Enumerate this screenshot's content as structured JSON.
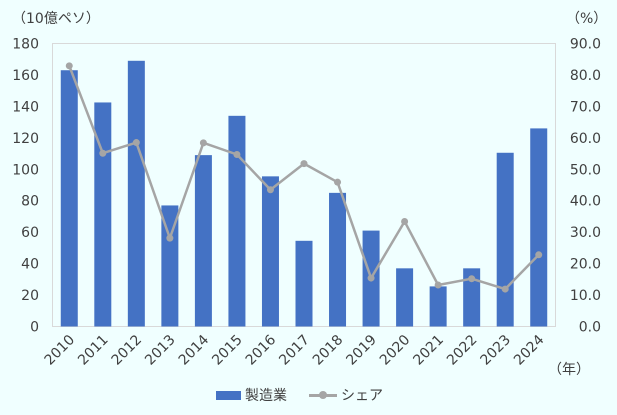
{
  "chart_data": {
    "type": "bar+line",
    "title": "",
    "categories": [
      "2010",
      "2011",
      "2012",
      "2013",
      "2014",
      "2015",
      "2016",
      "2017",
      "2018",
      "2019",
      "2020",
      "2021",
      "2022",
      "2023",
      "2024"
    ],
    "series": [
      {
        "name": "製造業",
        "type": "bar",
        "axis": "left",
        "color": "#4472C4",
        "values": [
          163,
          142.5,
          169,
          77,
          109,
          134,
          95.5,
          54.5,
          85,
          61,
          37,
          25.5,
          37,
          110.5,
          126
        ]
      },
      {
        "name": "シェア",
        "type": "line",
        "axis": "right",
        "color": "#A5A5A5",
        "values": [
          82.9,
          55.1,
          58.5,
          28.1,
          58.4,
          54.7,
          43.5,
          51.8,
          45.9,
          15.4,
          33.4,
          13.2,
          15.2,
          11.9,
          22.8
        ]
      }
    ],
    "y_left": {
      "label": "（10億ペソ）",
      "ylim": [
        0,
        180
      ],
      "ticks": [
        "0",
        "20",
        "40",
        "60",
        "80",
        "100",
        "120",
        "140",
        "160",
        "180"
      ]
    },
    "y_right": {
      "label": "（%）",
      "ylim": [
        0,
        90
      ],
      "ticks": [
        "0.0",
        "10.0",
        "20.0",
        "30.0",
        "40.0",
        "50.0",
        "60.0",
        "70.0",
        "80.0",
        "90.0"
      ]
    },
    "xlabel": "（年）",
    "grid": false,
    "legend_position": "bottom"
  },
  "labels": {
    "left_unit": "（10億ペソ）",
    "right_unit": "（%）",
    "x_unit": "（年）",
    "legend_bar": "製造業",
    "legend_line": "シェア"
  }
}
